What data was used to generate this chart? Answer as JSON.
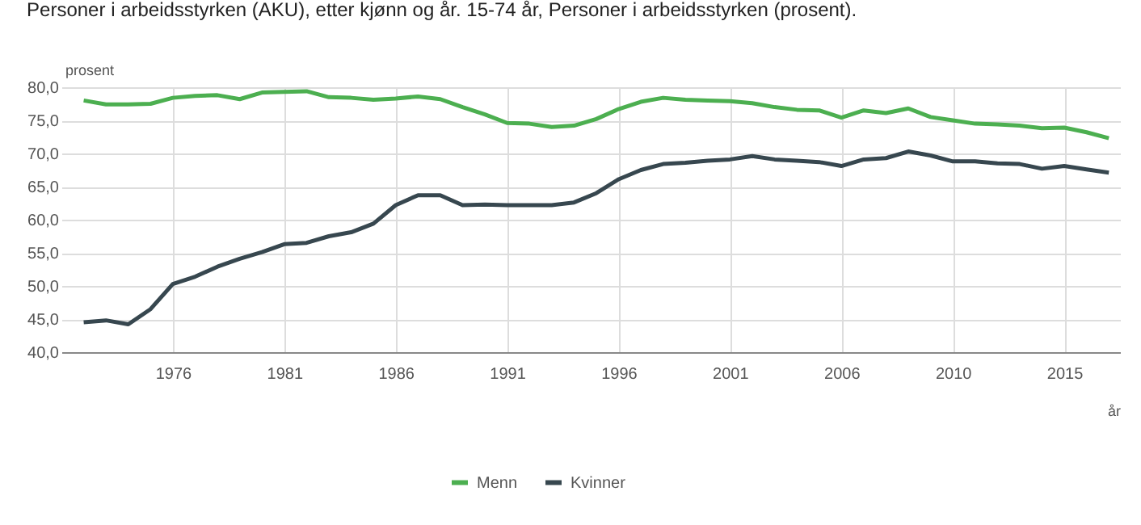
{
  "chart_data": {
    "type": "line",
    "title": "Personer i arbeidsstyrken (AKU), etter kjønn og år. 15-74 år, Personer i arbeidsstyrken (prosent).",
    "ylabel": "prosent",
    "xlabel": "år",
    "categories": [
      null,
      null,
      null,
      null,
      "1976",
      null,
      null,
      null,
      null,
      "1981",
      null,
      null,
      null,
      null,
      "1986",
      null,
      null,
      null,
      null,
      "1991",
      null,
      null,
      null,
      null,
      "1996",
      null,
      null,
      null,
      null,
      "2001",
      null,
      null,
      null,
      null,
      "2006",
      null,
      null,
      null,
      null,
      "2010",
      null,
      null,
      null,
      null,
      "2015",
      null,
      null
    ],
    "series": [
      {
        "name": "Menn",
        "color": "#4caf50",
        "values": [
          78.0,
          77.4,
          77.4,
          77.5,
          78.4,
          78.7,
          78.8,
          78.2,
          79.2,
          79.3,
          79.4,
          78.5,
          78.4,
          78.1,
          78.3,
          78.6,
          78.2,
          77.0,
          75.9,
          74.6,
          74.5,
          74.0,
          74.2,
          75.2,
          76.7,
          77.8,
          78.4,
          78.1,
          78.0,
          77.9,
          77.6,
          77.0,
          76.6,
          76.5,
          75.4,
          76.5,
          76.1,
          76.8,
          75.5,
          75.0,
          74.5,
          74.4,
          74.2,
          73.8,
          73.9,
          73.2,
          72.3
        ]
      },
      {
        "name": "Kvinner",
        "color": "#37474f",
        "values": [
          44.5,
          44.8,
          44.2,
          46.5,
          50.3,
          51.4,
          52.9,
          54.1,
          55.1,
          56.3,
          56.5,
          57.5,
          58.1,
          59.4,
          62.2,
          63.7,
          63.7,
          62.2,
          62.3,
          62.2,
          62.2,
          62.2,
          62.6,
          64.0,
          66.1,
          67.5,
          68.4,
          68.6,
          68.9,
          69.1,
          69.6,
          69.1,
          68.9,
          68.7,
          68.1,
          69.1,
          69.3,
          70.3,
          69.7,
          68.8,
          68.8,
          68.5,
          68.4,
          67.7,
          68.1,
          67.6,
          67.1
        ]
      }
    ],
    "ylim": [
      40,
      80
    ],
    "yticks": [
      {
        "value": 40,
        "label": "40,0"
      },
      {
        "value": 45,
        "label": "45,0"
      },
      {
        "value": 50,
        "label": "50,0"
      },
      {
        "value": 55,
        "label": "55,0"
      },
      {
        "value": 60,
        "label": "60,0"
      },
      {
        "value": 65,
        "label": "65,0"
      },
      {
        "value": 70,
        "label": "70,0"
      },
      {
        "value": 75,
        "label": "75,0"
      },
      {
        "value": 80,
        "label": "80,0"
      }
    ],
    "grid": true,
    "legend": "bottom",
    "marker": "none",
    "line_style": "solid"
  }
}
